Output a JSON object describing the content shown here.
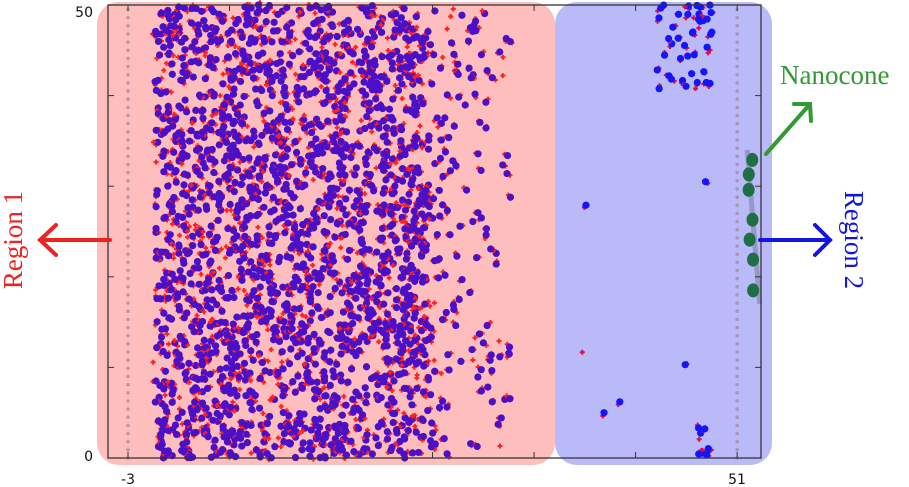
{
  "chart_data": {
    "type": "scatter",
    "title": "",
    "xlabel": "",
    "ylabel": "",
    "xlim": [
      -4.8,
      53.1
    ],
    "ylim": [
      0,
      50
    ],
    "x_tick_labels": [
      "-3",
      "51"
    ],
    "y_tick_labels": [
      "0",
      "50"
    ],
    "y_ticks": [
      0,
      10,
      20,
      30,
      40,
      50
    ],
    "grid": false,
    "series": [
      {
        "marker": "plus",
        "color_region1": "#ff2020",
        "color_region2": "#d8104a"
      },
      {
        "marker": "circle",
        "color_region1": "#4a10c8",
        "color_region2": "#1414ff"
      }
    ],
    "dense_cloud": {
      "x_range": [
        -0.6,
        23
      ],
      "tail_to_x": 31,
      "y_range": [
        0,
        50
      ]
    },
    "region2_clusters": [
      {
        "x_range": [
          43.3,
          48.8
        ],
        "y_range": [
          39.5,
          50
        ]
      },
      {
        "x_range": [
          47.0,
          48.5
        ],
        "y_range": [
          0.3,
          4.5
        ]
      }
    ],
    "region2_isolated_points": [
      [
        37.6,
        27.9
      ],
      [
        37.3,
        11.4
      ],
      [
        46.4,
        10.3
      ],
      [
        39.2,
        5.0
      ],
      [
        40.6,
        6.2
      ],
      [
        48.2,
        30.5
      ]
    ],
    "walls": {
      "x": [
        -3,
        51
      ],
      "color": "#a08898"
    },
    "nanocone": {
      "x": 52.2,
      "y": [
        32.9,
        31.3,
        29.6,
        26.3,
        24.1,
        21.9,
        18.5
      ],
      "color": "#1e6e46"
    },
    "regions": [
      {
        "label": "Region 1",
        "x_range": [
          -4.8,
          36.8
        ],
        "color": "#ffb8b8",
        "text_color": "#ee2222"
      },
      {
        "label": "Region 2",
        "x_range": [
          36.8,
          53.1
        ],
        "color": "#b4b4f8",
        "text_color": "#1414e0"
      }
    ],
    "annotations": {
      "nanocone_label": "Nanocone",
      "nanocone_color": "#339933"
    }
  }
}
